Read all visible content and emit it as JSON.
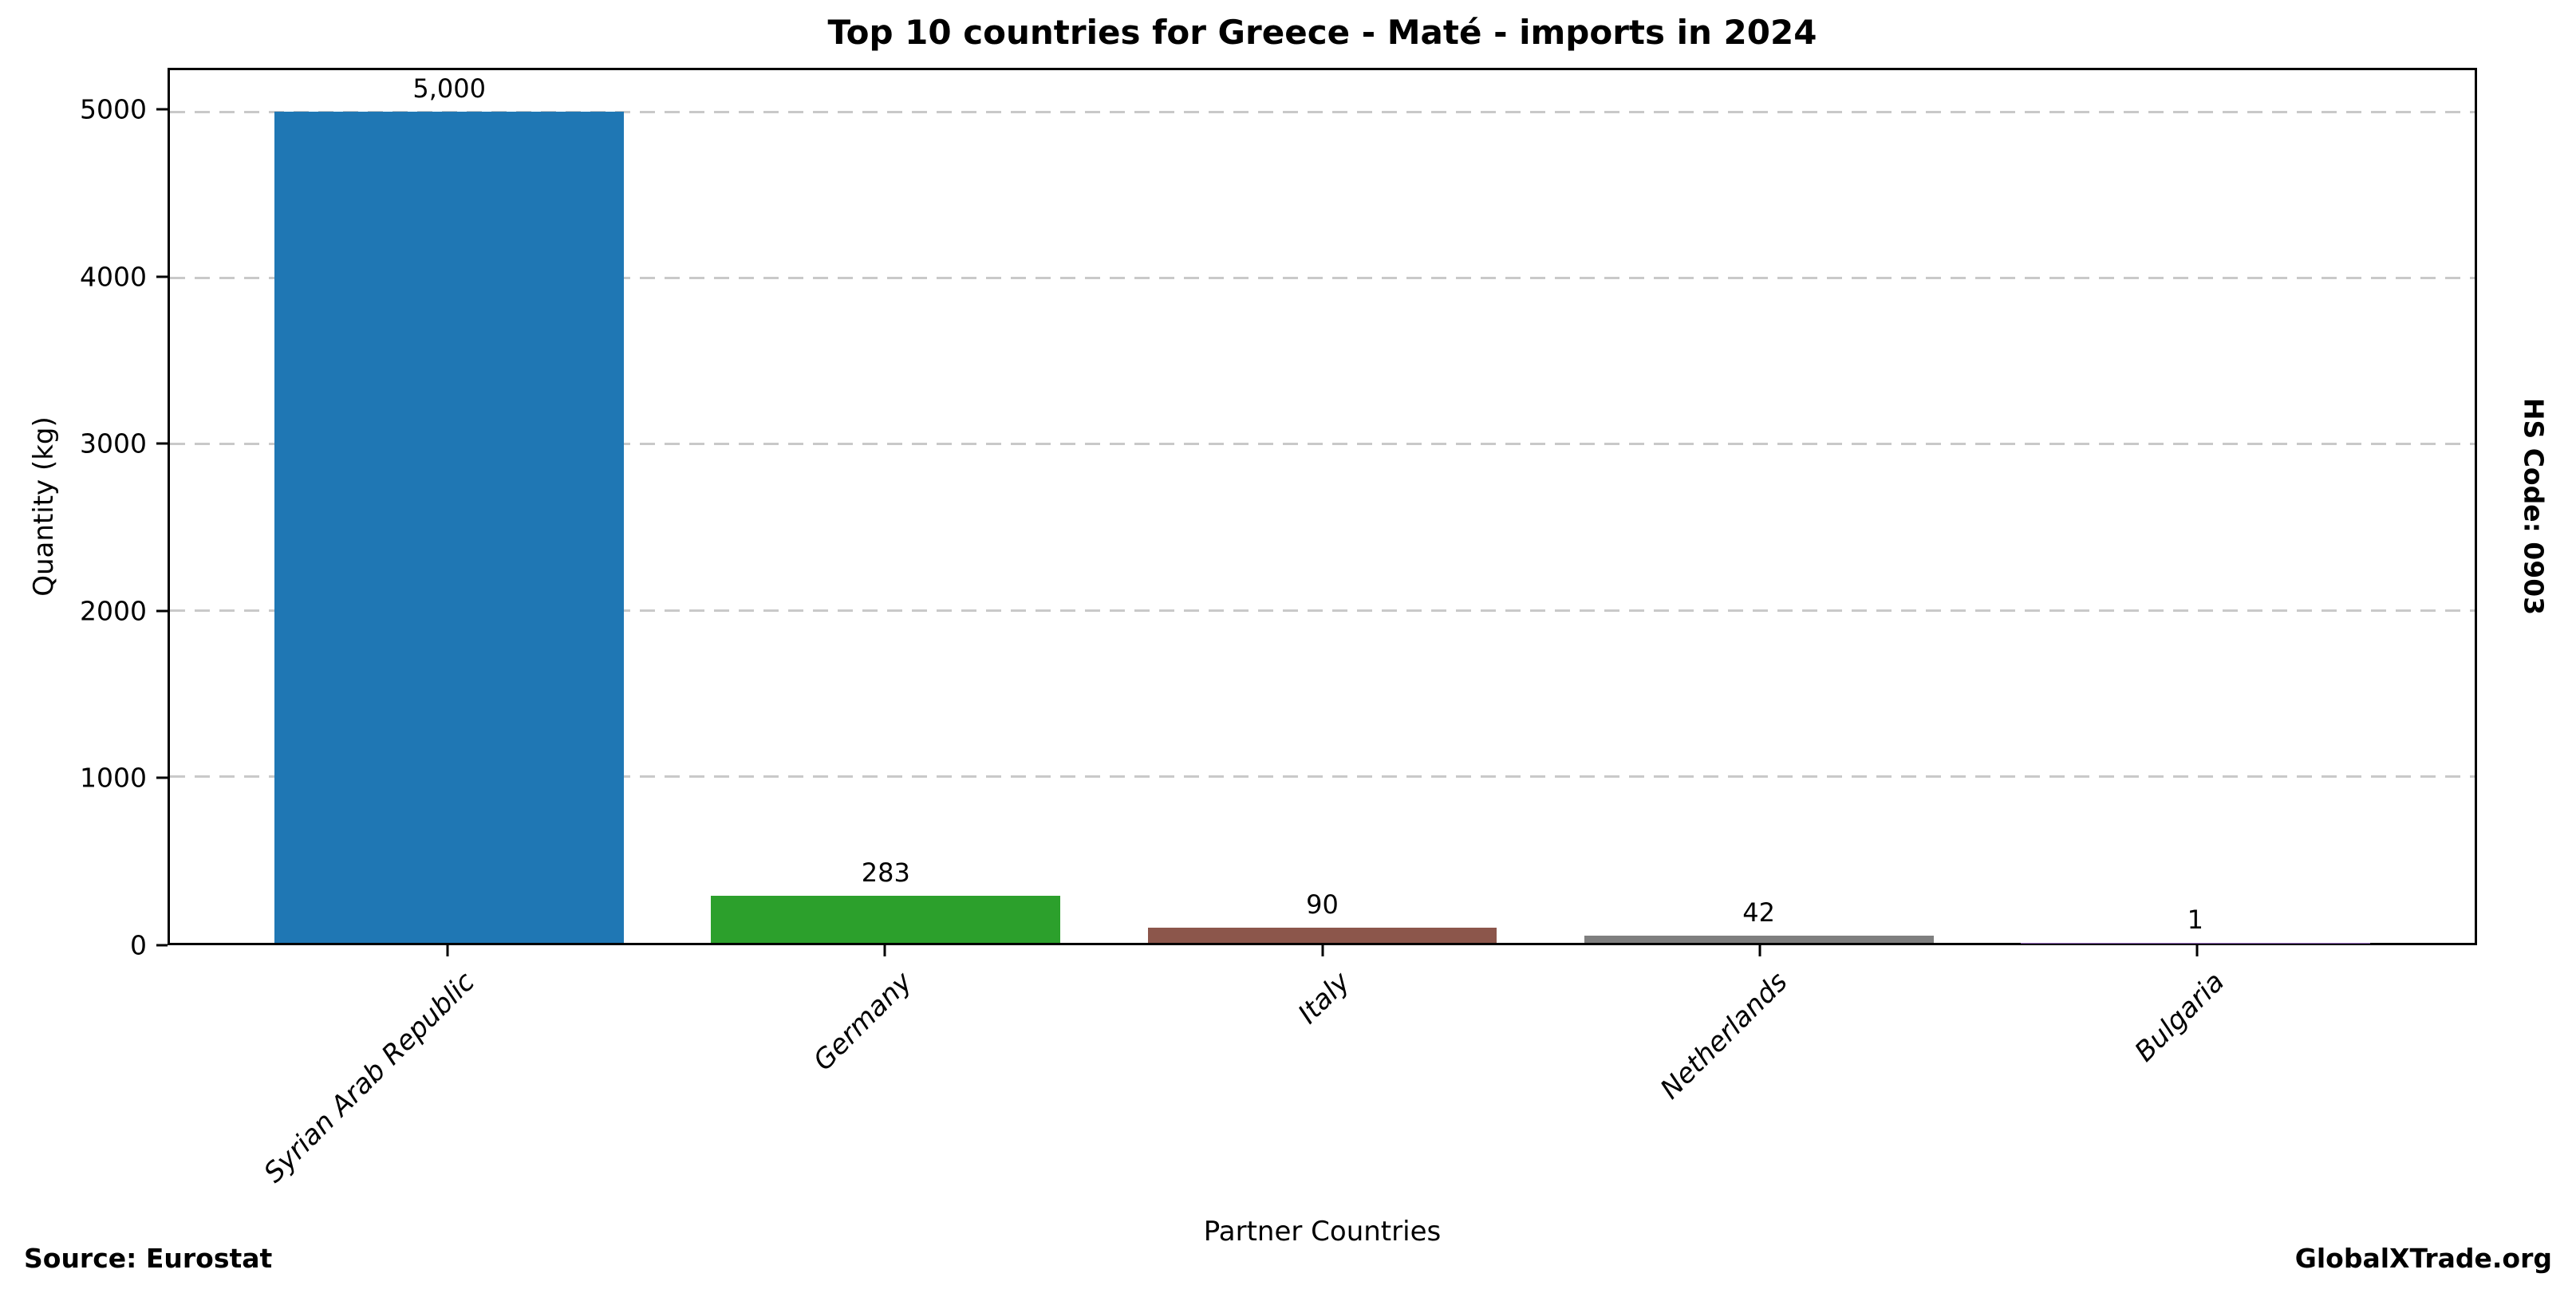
{
  "figure": {
    "right_label": "HS Code: 0903",
    "source": "Source: Eurostat",
    "brand": "GlobalXTrade.org"
  },
  "chart_data": {
    "type": "bar",
    "title": "Top 10 countries for Greece - Maté - imports in 2024",
    "categories": [
      "Syrian Arab Republic",
      "Germany",
      "Italy",
      "Netherlands",
      "Bulgaria"
    ],
    "values": [
      5000,
      283,
      90,
      42,
      1
    ],
    "value_labels": [
      "5,000",
      "283",
      "90",
      "42",
      "1"
    ],
    "bar_colors": [
      "#1f77b4",
      "#2ca02c",
      "#8c564b",
      "#7f7f7f",
      "#9467bd"
    ],
    "xlabel": "Partner Countries",
    "ylabel": "Quantity (kg)",
    "ylim": [
      0,
      5250
    ],
    "yticks": [
      0,
      1000,
      2000,
      3000,
      4000,
      5000
    ],
    "grid": "horizontal dashed",
    "grid_color": "#c9c9c9",
    "legend": "none"
  }
}
